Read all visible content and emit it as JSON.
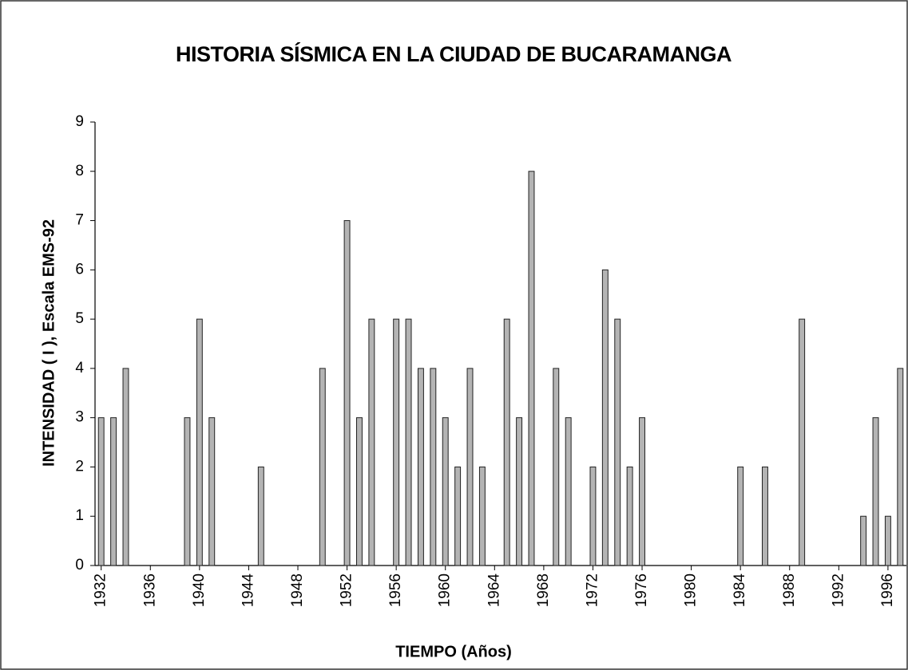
{
  "chart_data": {
    "type": "bar",
    "title": "HISTORIA SÍSMICA EN LA CIUDAD DE BUCARAMANGA",
    "xlabel": "TIEMPO (Años)",
    "ylabel": "INTENSIDAD ( I ), Escala EMS-92",
    "x": [
      1932,
      1933,
      1934,
      1939,
      1940,
      1941,
      1945,
      1950,
      1952,
      1953,
      1954,
      1956,
      1957,
      1958,
      1959,
      1960,
      1961,
      1962,
      1963,
      1965,
      1966,
      1967,
      1969,
      1970,
      1972,
      1973,
      1974,
      1975,
      1976,
      1984,
      1986,
      1989,
      1994,
      1995,
      1996,
      1997
    ],
    "values": [
      3,
      3,
      4,
      3,
      5,
      3,
      2,
      4,
      7,
      3,
      5,
      5,
      5,
      4,
      4,
      3,
      2,
      4,
      2,
      5,
      3,
      8,
      4,
      3,
      2,
      6,
      5,
      2,
      3,
      2,
      2,
      5,
      1,
      3,
      1,
      4
    ],
    "color": "#b4b4b4",
    "xlim": [
      1931.5,
      1997.5
    ],
    "xticks": [
      1932,
      1936,
      1940,
      1944,
      1948,
      1952,
      1956,
      1960,
      1964,
      1968,
      1972,
      1976,
      1980,
      1984,
      1988,
      1992,
      1996
    ],
    "ylim": [
      0,
      9
    ],
    "yticks": [
      0,
      1,
      2,
      3,
      4,
      5,
      6,
      7,
      8,
      9
    ],
    "grid": false
  }
}
